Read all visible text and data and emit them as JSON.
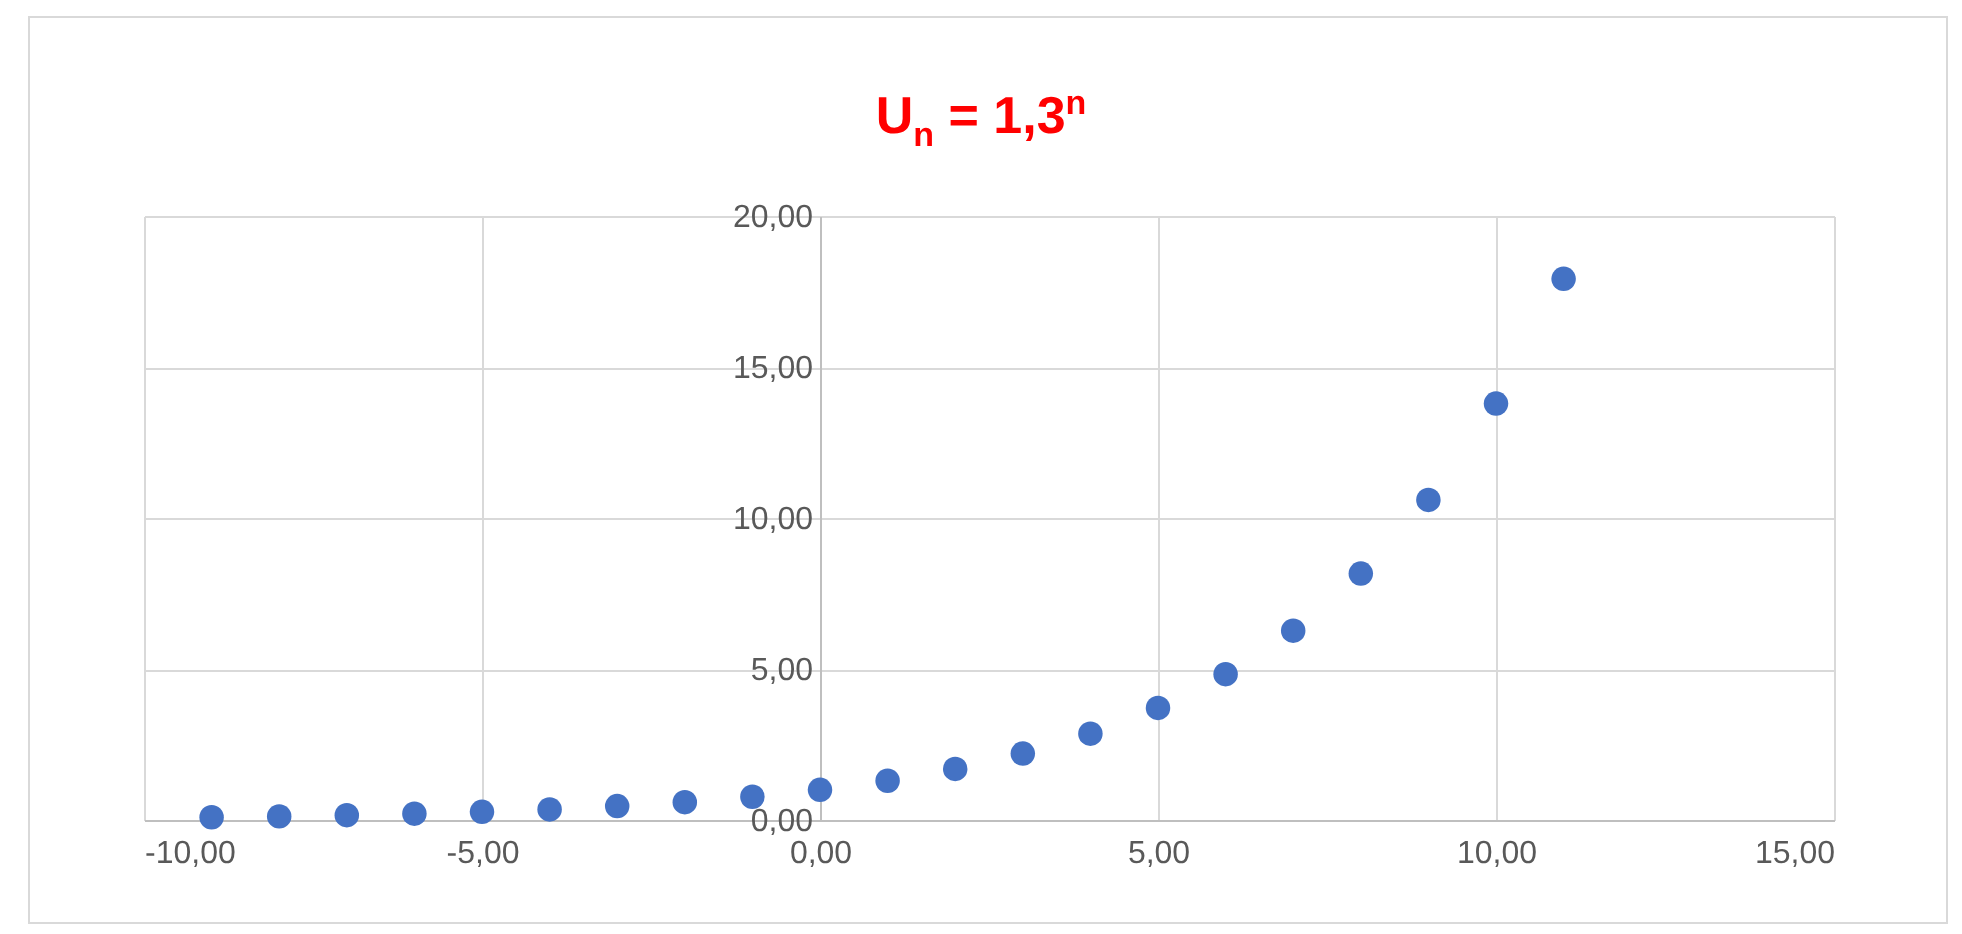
{
  "chart_data": {
    "type": "scatter",
    "title": "U$_{n}$ = 1,3$^{n}$",
    "x": [
      -9,
      -8,
      -7,
      -6,
      -5,
      -4,
      -3,
      -2,
      -1,
      0,
      1,
      2,
      3,
      4,
      5,
      6,
      7,
      8,
      9,
      10,
      11
    ],
    "series": [
      {
        "color": "#4472c4",
        "values": [
          0.09,
          0.12,
          0.16,
          0.21,
          0.27,
          0.35,
          0.46,
          0.59,
          0.77,
          1.0,
          1.3,
          1.69,
          2.2,
          2.86,
          3.71,
          4.83,
          6.27,
          8.16,
          10.6,
          13.79,
          17.92
        ]
      }
    ],
    "xlim": [
      -10,
      15
    ],
    "xticks": [
      {
        "value": -10,
        "label": "-10,00"
      },
      {
        "value": -5,
        "label": "-5,00"
      },
      {
        "value": 0,
        "label": "0,00"
      },
      {
        "value": 5,
        "label": "5,00"
      },
      {
        "value": 10,
        "label": "10,00"
      },
      {
        "value": 15,
        "label": "15,00"
      }
    ],
    "ylim": [
      0,
      20
    ],
    "yticks": [
      {
        "value": 0,
        "label": "0,00"
      },
      {
        "value": 5,
        "label": "5,00"
      },
      {
        "value": 10,
        "label": "10,00"
      },
      {
        "value": 15,
        "label": "15,00"
      },
      {
        "value": 20,
        "label": "20,00"
      }
    ],
    "grid": true,
    "marker": "circle"
  }
}
